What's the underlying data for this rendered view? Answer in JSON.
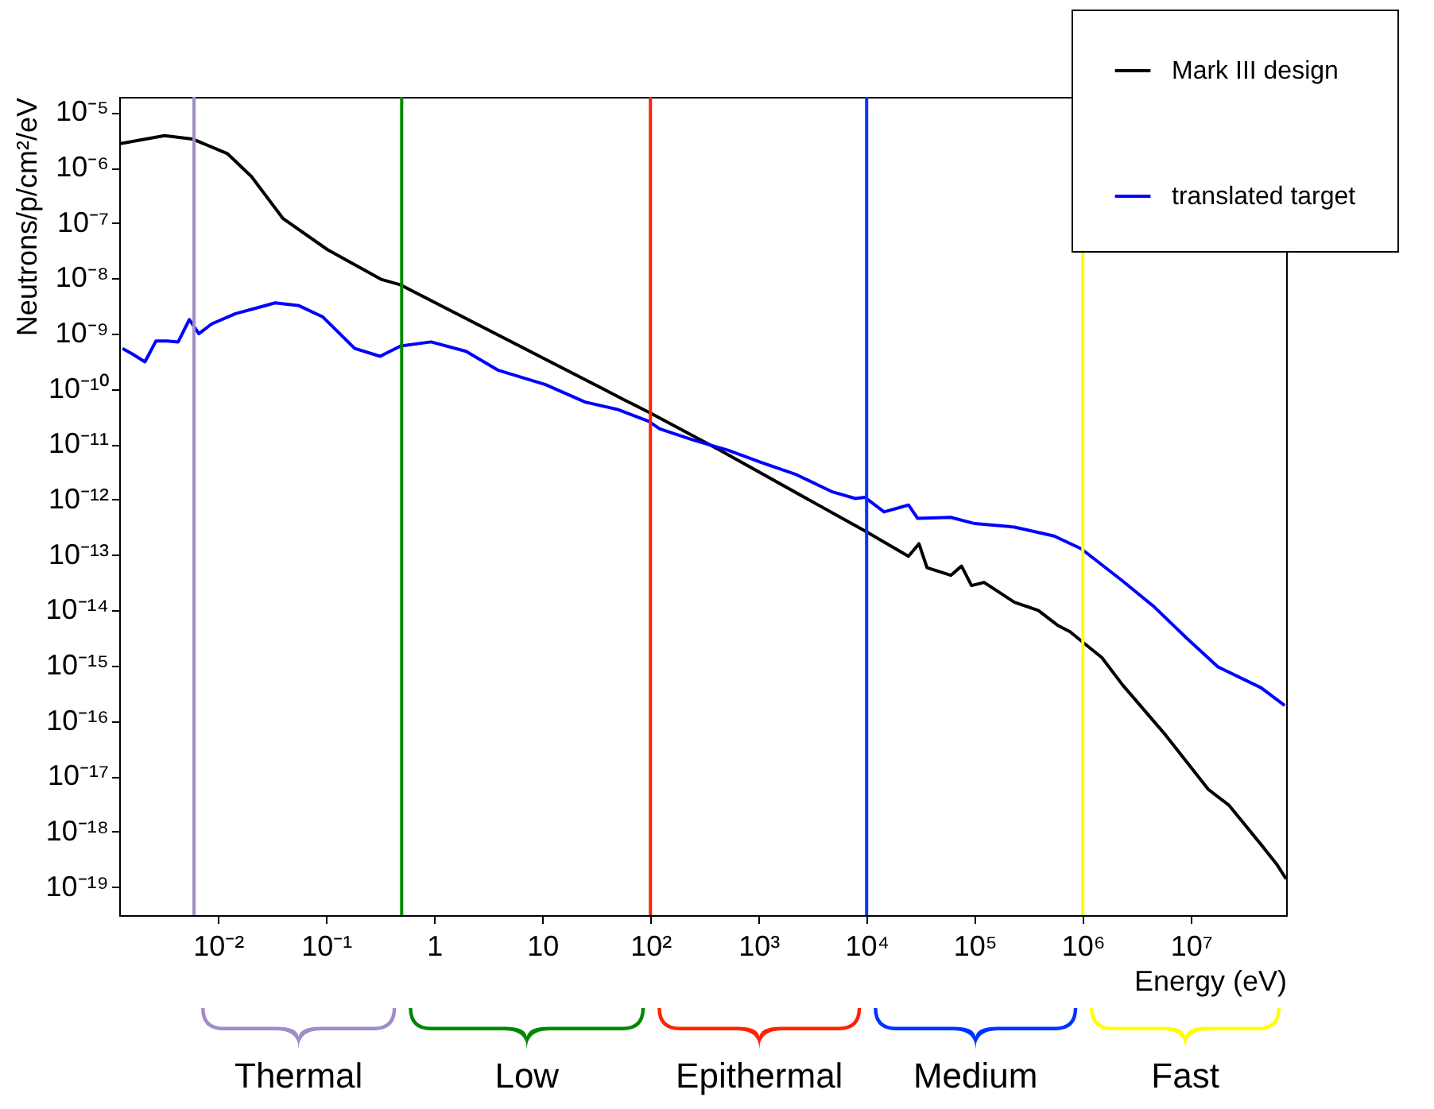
{
  "chart_data": {
    "type": "line",
    "xlabel": "Energy (eV)",
    "ylabel": "Neutrons/p/cm²/eV",
    "log": "xy",
    "xlim": [
      0.00122,
      76000000
    ],
    "ylim": [
      3.1e-20,
      1.9e-05
    ],
    "xticks": [
      {
        "value": 0.01,
        "label": "10⁻²"
      },
      {
        "value": 0.1,
        "label": "10⁻¹"
      },
      {
        "value": 1,
        "label": "1"
      },
      {
        "value": 10,
        "label": "10"
      },
      {
        "value": 100,
        "label": "10²"
      },
      {
        "value": 1000,
        "label": "10³"
      },
      {
        "value": 10000,
        "label": "10⁴"
      },
      {
        "value": 100000,
        "label": "10⁵"
      },
      {
        "value": 1000000,
        "label": "10⁶"
      },
      {
        "value": 10000000,
        "label": "10⁷"
      }
    ],
    "yticks": [
      {
        "value": 1e-19,
        "label": "10⁻¹⁹"
      },
      {
        "value": 1e-18,
        "label": "10⁻¹⁸"
      },
      {
        "value": 1e-17,
        "label": "10⁻¹⁷"
      },
      {
        "value": 1e-16,
        "label": "10⁻¹⁶"
      },
      {
        "value": 1e-15,
        "label": "10⁻¹⁵"
      },
      {
        "value": 1e-14,
        "label": "10⁻¹⁴"
      },
      {
        "value": 1e-13,
        "label": "10⁻¹³"
      },
      {
        "value": 1e-12,
        "label": "10⁻¹²"
      },
      {
        "value": 1e-11,
        "label": "10⁻¹¹"
      },
      {
        "value": 1e-10,
        "label": "10⁻¹⁰"
      },
      {
        "value": 1e-09,
        "label": "10⁻⁹"
      },
      {
        "value": 1e-08,
        "label": "10⁻⁸"
      },
      {
        "value": 1e-07,
        "label": "10⁻⁷"
      },
      {
        "value": 1e-06,
        "label": "10⁻⁶"
      },
      {
        "value": 1e-05,
        "label": "10⁻⁵"
      }
    ],
    "grid": false,
    "legend": "top right",
    "series": [
      {
        "name": "Mark III design",
        "color": "#000000",
        "x": [
          0.00122,
          0.0032,
          0.0058,
          0.0122,
          0.0204,
          0.04,
          0.103,
          0.327,
          0.49,
          58,
          97,
          440,
          9700,
          24400,
          30500,
          36200,
          60100,
          75500,
          93500,
          122000,
          233000,
          387000,
          582000,
          762000,
          966000,
          1500000,
          2330000,
          5820000,
          14500000,
          22500000,
          44400000,
          62000000,
          76000000
        ],
        "values": [
          2.7e-06,
          3.8e-06,
          3.3e-06,
          1.8e-06,
          6.9e-07,
          1.2e-07,
          3.3e-08,
          9.5e-09,
          7.6e-09,
          6.3e-11,
          3.8e-11,
          7.8e-12,
          2.7e-13,
          9.5e-14,
          1.6e-13,
          5.9e-14,
          4.3e-14,
          6.3e-14,
          2.8e-14,
          3.2e-14,
          1.4e-14,
          1e-14,
          5.4e-15,
          4.1e-15,
          2.8e-15,
          1.4e-15,
          4.5e-16,
          5.6e-17,
          5.8e-18,
          3e-18,
          5.9e-19,
          2.6e-19,
          1.4e-19
        ]
      },
      {
        "name": "translated target",
        "color": "#0000ff",
        "x": [
          0.00131,
          0.00161,
          0.00211,
          0.00267,
          0.00338,
          0.00428,
          0.00543,
          0.00666,
          0.00873,
          0.0145,
          0.0241,
          0.0338,
          0.0562,
          0.0935,
          0.184,
          0.316,
          0.49,
          0.935,
          1.97,
          3.87,
          10.7,
          24.9,
          49.1,
          96.6,
          122,
          249,
          526,
          1035,
          2180,
          4750,
          7890,
          9660,
          14500,
          24400,
          29600,
          60100,
          100000,
          233000,
          543000,
          966000,
          2330000,
          4590000,
          9040000,
          17800000,
          44400000,
          73800000
        ],
        "values": [
          5.4e-10,
          4.3e-10,
          3.1e-10,
          7.4e-10,
          7.4e-10,
          7.1e-10,
          1.8e-09,
          1e-09,
          1.5e-09,
          2.3e-09,
          3e-09,
          3.6e-09,
          3.2e-09,
          2e-09,
          5.4e-10,
          3.9e-10,
          6e-10,
          7.1e-10,
          4.8e-10,
          2.2e-10,
          1.2e-10,
          5.8e-11,
          4.3e-11,
          2.6e-11,
          1.9e-11,
          1.2e-11,
          7.8e-12,
          4.8e-12,
          2.9e-12,
          1.4e-12,
          1.05e-12,
          1.1e-12,
          6e-13,
          8e-13,
          4.6e-13,
          4.8e-13,
          3.7e-13,
          3.2e-13,
          2.2e-13,
          1.3e-13,
          3.4e-14,
          1.15e-14,
          3.2e-15,
          9.5e-16,
          4e-16,
          1.9e-16
        ]
      }
    ],
    "ref_lines": [
      {
        "axis": "x",
        "value": 0.006,
        "color": "#a08cc8"
      },
      {
        "axis": "x",
        "value": 0.5,
        "color": "#008800"
      },
      {
        "axis": "x",
        "value": 100,
        "color": "#ff2200"
      },
      {
        "axis": "x",
        "value": 10000,
        "color": "#0033ff"
      },
      {
        "axis": "x",
        "value": 1000000,
        "color": "#ffff00"
      }
    ],
    "annotations": [
      "Thermal",
      "Low",
      "Epithermal",
      "Medium",
      "Fast"
    ]
  }
}
